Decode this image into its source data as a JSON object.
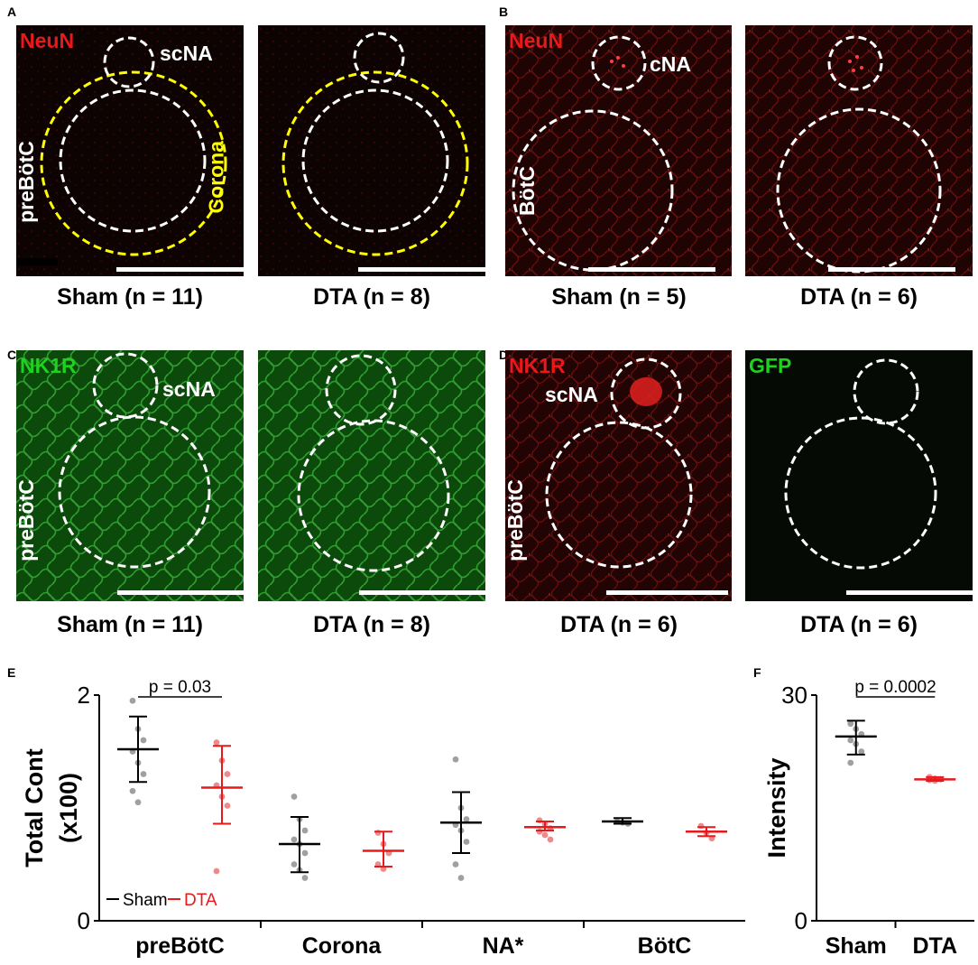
{
  "panels": {
    "A": {
      "letter": "A"
    },
    "B": {
      "letter": "B"
    },
    "C": {
      "letter": "C"
    },
    "D": {
      "letter": "D"
    },
    "E": {
      "letter": "E"
    },
    "F": {
      "letter": "F"
    }
  },
  "images": {
    "a1": {
      "stain": "NeuN",
      "region_top": "scNA",
      "region_left": "preBötC",
      "corona": "Corona",
      "caption": "Sham (n = 11)"
    },
    "a2": {
      "caption": "DTA (n = 8)"
    },
    "b1": {
      "stain": "NeuN",
      "region_top": "cNA",
      "region_left": "BötC",
      "caption": "Sham (n = 5)"
    },
    "b2": {
      "caption": "DTA (n = 6)"
    },
    "c1": {
      "stain": "NK1R",
      "region_top": "scNA",
      "region_left": "preBötC",
      "caption": "Sham (n = 11)"
    },
    "c2": {
      "caption": "DTA (n = 8)"
    },
    "d1": {
      "stain": "NK1R",
      "region_top": "scNA",
      "region_left": "preBötC",
      "caption": "DTA (n = 6)"
    },
    "d2": {
      "stain": "GFP",
      "caption": "DTA (n = 6)"
    }
  },
  "colors": {
    "red": "#e8191b",
    "green": "#1fd21f",
    "yellow": "#ffff00",
    "sham": "#000000",
    "dta": "#e8191b",
    "sham_dot": "#a0a0a0",
    "dta_dot": "#f08a8a"
  },
  "chart_data": [
    {
      "id": "E",
      "type": "scatter",
      "ylabel": "Total Cont (x100)",
      "ylim": [
        0,
        2
      ],
      "yticks": [
        0,
        2
      ],
      "categories": [
        "preBötC",
        "Corona",
        "NA*",
        "BötC"
      ],
      "legend": {
        "position": "bottom-left",
        "entries": [
          "Sham",
          "DTA"
        ]
      },
      "annotation": {
        "text": "p = 0.03",
        "between": [
          "preBötC-Sham",
          "preBötC-DTA"
        ]
      },
      "series": [
        {
          "name": "Sham",
          "color": "#000000",
          "mean": [
            1.52,
            0.68,
            0.87,
            0.88
          ],
          "lower": [
            1.23,
            0.43,
            0.6,
            0.86
          ],
          "upper": [
            1.81,
            0.92,
            1.14,
            0.91
          ],
          "points": [
            [
              1.95,
              1.7,
              1.6,
              1.5,
              1.4,
              1.3,
              1.15,
              1.05
            ],
            [
              1.1,
              0.9,
              0.8,
              0.72,
              0.68,
              0.6,
              0.5,
              0.45,
              0.38
            ],
            [
              1.43,
              1.0,
              0.9,
              0.85,
              0.8,
              0.7,
              0.5,
              0.38
            ],
            [
              0.88,
              0.87,
              0.86
            ]
          ]
        },
        {
          "name": "DTA",
          "color": "#e8191b",
          "mean": [
            1.18,
            0.62,
            0.83,
            0.79
          ],
          "lower": [
            0.86,
            0.48,
            0.8,
            0.75
          ],
          "upper": [
            1.55,
            0.79,
            0.88,
            0.83
          ],
          "points": [
            [
              1.58,
              1.42,
              1.3,
              1.2,
              1.1,
              1.02,
              0.44
            ],
            [
              0.78,
              0.68,
              0.6,
              0.5,
              0.46
            ],
            [
              0.89,
              0.86,
              0.82,
              0.79,
              0.76,
              0.72
            ],
            [
              0.84,
              0.78,
              0.73
            ]
          ]
        }
      ]
    },
    {
      "id": "F",
      "type": "scatter",
      "ylabel": "Intensity",
      "ylim": [
        0,
        30
      ],
      "yticks": [
        0,
        30
      ],
      "categories": [
        "Sham",
        "DTA"
      ],
      "annotation": {
        "text": "p = 0.0002",
        "between": [
          "Sham",
          "DTA"
        ]
      },
      "series": [
        {
          "name": "Sham",
          "color": "#000000",
          "mean": [
            24.5
          ],
          "lower": [
            22.1
          ],
          "upper": [
            26.6
          ],
          "points": [
            [
              26.2,
              25.5,
              24.8,
              24.0,
              23.5,
              22.5,
              21.0
            ]
          ]
        },
        {
          "name": "DTA",
          "color": "#e8191b",
          "mean": [
            18.8
          ],
          "lower": [
            18.6
          ],
          "upper": [
            19.1
          ],
          "points": [
            [
              19.1,
              18.9,
              18.8,
              18.7,
              18.6
            ]
          ]
        }
      ]
    }
  ]
}
